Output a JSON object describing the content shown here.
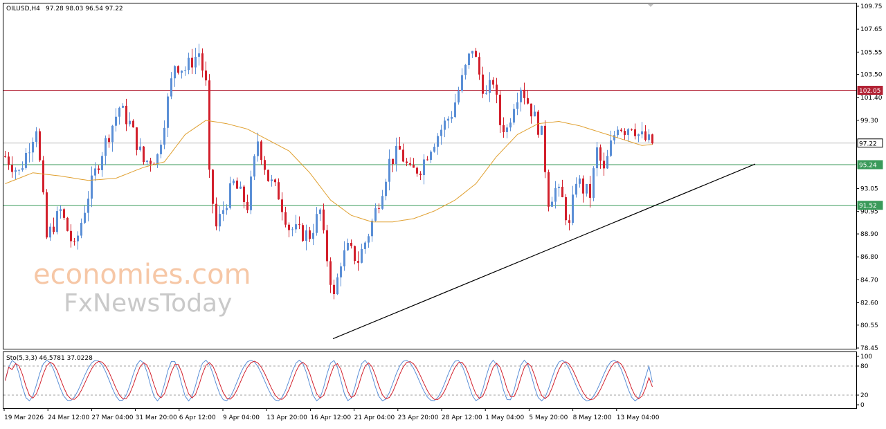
{
  "header": {
    "symbol": "OILUSD,H4",
    "ohlc": "97.28 98.03 96.54 97.22"
  },
  "stoch_header": "Sto(5,3,3) 46.5781 37.0228",
  "watermark": {
    "line1": "economies.com",
    "line2": "FxNewsToday"
  },
  "colors": {
    "bull": "#5b8fd6",
    "bear": "#d2202c",
    "ma": "#e0a030",
    "resistance": "#b22234",
    "support": "#3a9a5a",
    "trendline": "#000000",
    "stoch_main": "#5b8fd6",
    "stoch_signal": "#d2202c"
  },
  "chart_data": [
    {
      "type": "candlestick",
      "symbol": "OILUSD",
      "timeframe": "H4",
      "ylim": [
        78.45,
        109.75
      ],
      "y_ticks": [
        "109.75",
        "107.65",
        "105.55",
        "103.50",
        "101.40",
        "99.30",
        "97.22",
        "95.24",
        "93.05",
        "91.52",
        "90.95",
        "88.90",
        "86.80",
        "84.70",
        "82.60",
        "80.55",
        "78.45"
      ],
      "x_tick_labels": [
        "19 Mar 2026",
        "24 Mar 12:00",
        "27 Mar 04:00",
        "31 Mar 20:00",
        "6 Apr 12:00",
        "9 Apr 04:00",
        "13 Apr 20:00",
        "16 Apr 12:00",
        "21 Apr 04:00",
        "23 Apr 20:00",
        "28 Apr 12:00",
        "1 May 04:00",
        "5 May 20:00",
        "8 May 12:00",
        "13 May 04:00"
      ],
      "price_levels": [
        {
          "value": 102.05,
          "label": "102.05",
          "kind": "resistance"
        },
        {
          "value": 97.22,
          "label": "97.22",
          "kind": "current"
        },
        {
          "value": 95.24,
          "label": "95.24",
          "kind": "support"
        },
        {
          "value": 91.52,
          "label": "91.52",
          "kind": "support"
        }
      ],
      "trendline": {
        "from": {
          "x": "16 Apr 12:00",
          "y": 79.3
        },
        "to": {
          "x": "after 13 May",
          "y": 95.3
        }
      },
      "close_path": [
        [
          0,
          96.0
        ],
        [
          4,
          94.5
        ],
        [
          9,
          98.8
        ],
        [
          12,
          88.5
        ],
        [
          16,
          91.0
        ],
        [
          20,
          87.5
        ],
        [
          24,
          92.5
        ],
        [
          28,
          96.5
        ],
        [
          33,
          100.5
        ],
        [
          36,
          99.0
        ],
        [
          40,
          95.5
        ],
        [
          44,
          96.0
        ],
        [
          49,
          104.5
        ],
        [
          52,
          104.0
        ],
        [
          56,
          105.5
        ],
        [
          58,
          102.5
        ],
        [
          59,
          94.0
        ],
        [
          61,
          89.5
        ],
        [
          64,
          92.0
        ],
        [
          66,
          93.5
        ],
        [
          70,
          91.5
        ],
        [
          73,
          97.5
        ],
        [
          76,
          94.0
        ],
        [
          79,
          92.5
        ],
        [
          82,
          89.5
        ],
        [
          85,
          89.0
        ],
        [
          88,
          88.8
        ],
        [
          91,
          91.0
        ],
        [
          92,
          88.5
        ],
        [
          95,
          83.0
        ],
        [
          97,
          86.5
        ],
        [
          99,
          87.5
        ],
        [
          102,
          86.5
        ],
        [
          105,
          89.0
        ],
        [
          108,
          92.0
        ],
        [
          111,
          95.5
        ],
        [
          114,
          96.5
        ],
        [
          117,
          94.5
        ],
        [
          120,
          95.0
        ],
        [
          123,
          97.0
        ],
        [
          126,
          98.5
        ],
        [
          129,
          100.0
        ],
        [
          132,
          103.0
        ],
        [
          135,
          106.0
        ],
        [
          137,
          103.5
        ],
        [
          139,
          101.5
        ],
        [
          141,
          103.0
        ],
        [
          143,
          99.0
        ],
        [
          145,
          98.5
        ],
        [
          147,
          101.0
        ],
        [
          149,
          102.5
        ],
        [
          151,
          101.0
        ],
        [
          153,
          99.5
        ],
        [
          155,
          98.0
        ],
        [
          157,
          92.0
        ],
        [
          159,
          93.0
        ],
        [
          161,
          92.0
        ],
        [
          163,
          89.5
        ],
        [
          165,
          94.0
        ],
        [
          167,
          93.0
        ],
        [
          169,
          92.5
        ],
        [
          171,
          96.5
        ],
        [
          173,
          94.5
        ],
        [
          175,
          97.0
        ],
        [
          177,
          99.0
        ],
        [
          179,
          98.5
        ],
        [
          181,
          99.0
        ],
        [
          183,
          98.0
        ],
        [
          185,
          97.5
        ],
        [
          187,
          97.22
        ]
      ],
      "ma_path": [
        [
          0,
          93.5
        ],
        [
          8,
          94.5
        ],
        [
          16,
          94.2
        ],
        [
          24,
          93.8
        ],
        [
          32,
          94.0
        ],
        [
          40,
          95.0
        ],
        [
          46,
          95.5
        ],
        [
          52,
          98.0
        ],
        [
          58,
          99.3
        ],
        [
          64,
          99.0
        ],
        [
          70,
          98.5
        ],
        [
          76,
          97.5
        ],
        [
          82,
          96.5
        ],
        [
          88,
          94.5
        ],
        [
          94,
          92.0
        ],
        [
          100,
          90.6
        ],
        [
          106,
          90.0
        ],
        [
          112,
          90.0
        ],
        [
          118,
          90.3
        ],
        [
          124,
          91.0
        ],
        [
          130,
          92.0
        ],
        [
          136,
          93.5
        ],
        [
          142,
          96.0
        ],
        [
          148,
          98.0
        ],
        [
          154,
          99.0
        ],
        [
          160,
          99.2
        ],
        [
          166,
          98.8
        ],
        [
          172,
          98.2
        ],
        [
          178,
          97.6
        ],
        [
          184,
          97.0
        ],
        [
          187,
          97.1
        ]
      ]
    },
    {
      "type": "line",
      "title": "Sto(5,3,3) 46.5781 37.0228",
      "ylim": [
        0,
        100
      ],
      "y_ticks": [
        "100",
        "80",
        "20",
        "0"
      ],
      "levels": [
        80,
        20
      ],
      "series": [
        {
          "role": "main",
          "last": 46.5781
        },
        {
          "role": "signal",
          "last": 37.0228
        }
      ]
    }
  ]
}
